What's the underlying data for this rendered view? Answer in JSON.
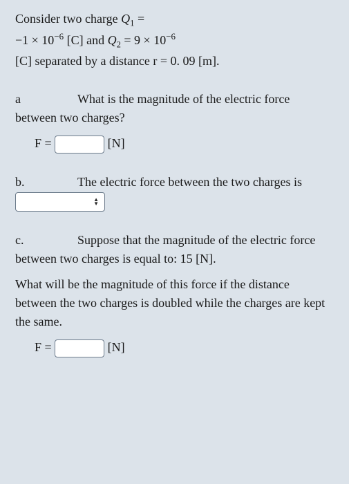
{
  "intro": {
    "line1_pre": "Consider two charge ",
    "Q1_sym_base": "Q",
    "Q1_sym_sub": "1",
    "eq": " = ",
    "Q1_val_coef": "−1 × 10",
    "Q1_val_exp": "−6",
    "Q1_unit": " [C]  and ",
    "Q2_sym_base": "Q",
    "Q2_sym_sub": "2",
    "Q2_eq": " = 9 × 10",
    "Q2_exp": "−6",
    "line3": "[C] separated by a distance r = 0. 09 [m]."
  },
  "partA": {
    "label": "a",
    "text": "What is the magnitude of the electric force between two charges?",
    "F_label": "F =",
    "unit": "[N]"
  },
  "partB": {
    "label": "b.",
    "text_before": "The electric force between the two charges is",
    "selected": ""
  },
  "partC": {
    "label": "c.",
    "text1": "Suppose that the magnitude of the electric force between two charges is equal to: 15 [N].",
    "text2": "What will be the magnitude of this force if the distance between the two charges is doubled while the charges are kept the same.",
    "F_label": "F =",
    "unit": "[N]"
  },
  "style": {
    "bg": "#dce3ea",
    "inputBorder": "#6b7a8a",
    "textColor": "#1a1a1a",
    "fontFamily": "Georgia, Times New Roman, serif",
    "baseFontSize": 18
  }
}
